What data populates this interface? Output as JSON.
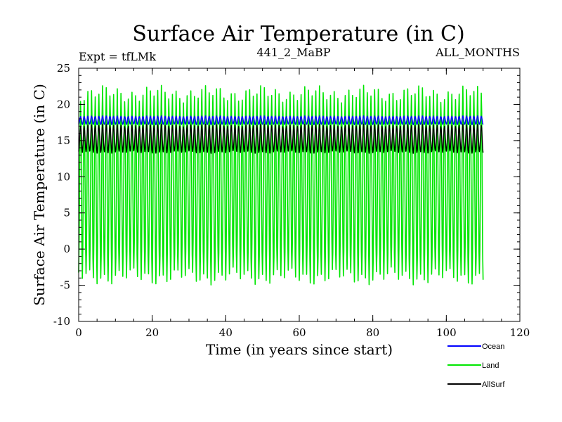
{
  "chart_data": {
    "type": "line",
    "title": "Surface Air Temperature (in C)",
    "subtitle_left": "Expt = tfLMk",
    "subtitle_center": "441_2_MaBP",
    "subtitle_right": "ALL_MONTHS",
    "xlabel": "Time (in years since start)",
    "ylabel": "Surface Air Temperature (in C)",
    "xlim": [
      0,
      120
    ],
    "ylim": [
      -10,
      25
    ],
    "x_ticks": [
      0,
      20,
      40,
      60,
      80,
      100,
      120
    ],
    "y_ticks": [
      -10,
      -5,
      0,
      5,
      10,
      15,
      20,
      25
    ],
    "x_minor_step": 5,
    "y_minor_step": 1,
    "x_end": 110,
    "cycles_per_year": 1,
    "series": [
      {
        "name": "Ocean",
        "color": "#0000ff",
        "min": 17.2,
        "max": 18.4,
        "mean": 17.8
      },
      {
        "name": "Land",
        "color": "#00e600",
        "min": -4.5,
        "max": 22.2,
        "mean": 8.8
      },
      {
        "name": "AllSurf",
        "color": "#000000",
        "min": 13.3,
        "max": 17.2,
        "mean": 15.2
      }
    ],
    "legend_position": "bottom-right"
  }
}
